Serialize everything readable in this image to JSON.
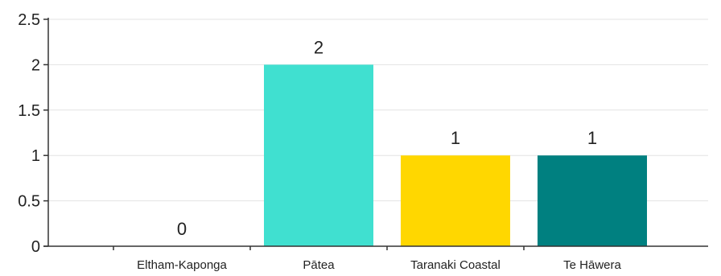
{
  "chart_data": {
    "type": "bar",
    "categories": [
      "Eltham-Kaponga",
      "Pātea",
      "Taranaki Coastal",
      "Te Hāwera"
    ],
    "values": [
      0,
      2,
      1,
      1
    ],
    "colors": [
      "#40e0d0",
      "#40e0d0",
      "#ffd700",
      "#008080"
    ],
    "ylim": [
      0,
      2.5
    ],
    "yticks": [
      0,
      0.5,
      1,
      1.5,
      2,
      2.5
    ],
    "ytick_labels": [
      "0",
      "0.5",
      "1",
      "1.5",
      "2",
      "2.5"
    ],
    "data_labels": [
      "0",
      "2",
      "1",
      "1"
    ],
    "grid": true,
    "title": "",
    "xlabel": "",
    "ylabel": ""
  }
}
